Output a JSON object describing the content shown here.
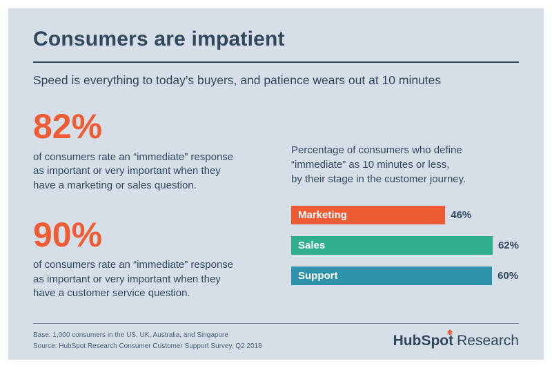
{
  "page": {
    "title": "Consumers are impatient",
    "subtitle": "Speed is everything to today’s buyers, and patience wears out at 10 minutes"
  },
  "stats": [
    {
      "value": "82%",
      "description": "of consumers rate an “immediate” response\nas important or very important when they\nhave a marketing or sales question."
    },
    {
      "value": "90%",
      "description": "of consumers rate an “immediate” response\nas important or very important when they\nhave a customer service question."
    }
  ],
  "chart_data": {
    "type": "bar",
    "orientation": "horizontal",
    "title": "Percentage of consumers who define “immediate” as 10 minutes or less, by their stage in the customer journey.",
    "caption": "Percentage of consumers who define\n“immediate” as 10 minutes or less,\nby their stage in the customer journey.",
    "categories": [
      "Marketing",
      "Sales",
      "Support"
    ],
    "values": [
      46,
      62,
      60
    ],
    "value_labels": [
      "46%",
      "62%",
      "60%"
    ],
    "bar_colors": [
      "#ed5c35",
      "#2fae8d",
      "#2e92ab"
    ],
    "xlim": [
      0,
      68
    ],
    "scale_max": 68,
    "grid": false,
    "legend": false
  },
  "footer": {
    "base": "Base: 1,000 consumers in the US, UK, Australia, and Singapore",
    "source": "Source: HubSpot Research Consumer Customer Support Survey, Q2 2018",
    "brand": {
      "part1": "HubSp",
      "o": "o",
      "part2": "t",
      "suffix": "Research"
    }
  },
  "colors": {
    "background": "#d6dee8",
    "navy": "#33475b",
    "accent_orange": "#ed5c35",
    "green": "#2fae8d",
    "teal": "#2e92ab"
  }
}
